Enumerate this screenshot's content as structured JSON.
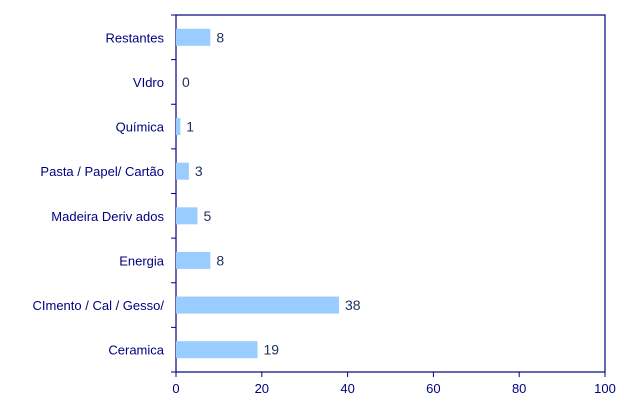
{
  "chart_data": {
    "type": "bar",
    "orientation": "horizontal",
    "categories": [
      "Restantes",
      "VIdro",
      "Química",
      "Pasta / Papel/ Cartão",
      "Madeira Deriv ados",
      "Energia",
      "CImento / Cal / Gesso/",
      "Ceramica"
    ],
    "values": [
      8,
      0,
      1,
      3,
      5,
      8,
      38,
      19
    ],
    "value_labels": [
      "8",
      "0",
      "1",
      "3",
      "5",
      "8",
      "38",
      "19"
    ],
    "xlim": [
      0,
      100
    ],
    "xticks": [
      0,
      20,
      40,
      60,
      80,
      100
    ],
    "xtick_labels": [
      "0",
      "20",
      "40",
      "60",
      "80",
      "100"
    ],
    "title": "",
    "xlabel": "",
    "ylabel": "",
    "grid": false,
    "colors": {
      "bar": "#99ccff",
      "axis": "#000080",
      "label": "#000080",
      "value_label": "#1f2f5a"
    }
  }
}
